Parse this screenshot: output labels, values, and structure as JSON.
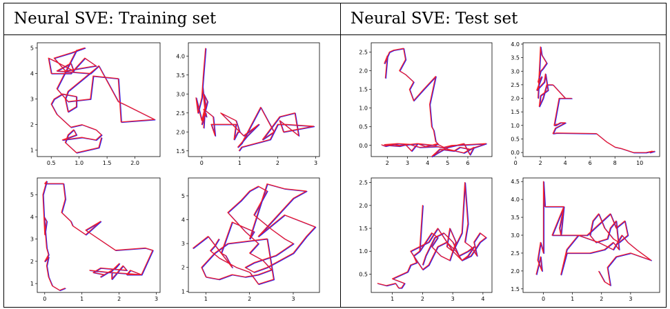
{
  "headers": {
    "left": "Neural SVE: Training set",
    "right": "Neural SVE: Test set"
  },
  "colors": {
    "truth": "#1a1aff",
    "prediction": "#ff1a1a",
    "blend": "#8e1a8e"
  },
  "chart_data": [
    {
      "type": "line",
      "xlim": [
        0.25,
        2.45
      ],
      "ylim": [
        0.75,
        5.2
      ],
      "xticks": [
        "0.5",
        "1.0",
        "1.5",
        "2.0"
      ],
      "yticks": [
        "1",
        "2",
        "3",
        "4",
        "5"
      ],
      "series": [
        {
          "x": [
            1.4,
            1.35,
            0.95,
            0.75,
            0.8,
            0.9,
            0.95,
            0.7,
            1.05,
            1.3,
            1.4,
            1.3,
            1.05,
            0.85,
            0.6,
            0.5,
            0.55,
            0.7,
            0.95,
            0.95,
            0.8,
            0.75,
            0.8,
            1.3,
            1.35,
            1.7,
            1.8,
            2.35,
            1.75,
            1.7,
            1.25,
            1.2,
            0.8,
            0.6,
            0.95,
            1.1,
            0.85,
            0.55,
            0.75,
            1.3,
            1.1,
            0.85,
            0.5,
            0.45,
            0.55,
            0.9,
            0.85,
            0.6,
            1.2,
            1.3
          ],
          "y": [
            1.5,
            1.1,
            0.9,
            1.3,
            1.6,
            1.8,
            1.6,
            1.4,
            1.5,
            1.4,
            1.6,
            1.8,
            2.0,
            1.9,
            2.4,
            2.8,
            3.0,
            3.2,
            3.1,
            2.7,
            2.5,
            3.0,
            3.3,
            4.2,
            4.3,
            2.9,
            2.8,
            2.2,
            2.1,
            3.8,
            3.9,
            3.0,
            2.9,
            3.4,
            4.9,
            5.0,
            4.8,
            4.6,
            4.1,
            4.3,
            4.6,
            4.0,
            4.0,
            4.6,
            4.5,
            4.1,
            4.4,
            4.1,
            4.0,
            4.2
          ]
        }
      ]
    },
    {
      "type": "line",
      "xlim": [
        -0.35,
        3.1
      ],
      "ylim": [
        1.35,
        4.35
      ],
      "xticks": [
        "0",
        "1",
        "2",
        "3"
      ],
      "yticks": [
        "1.5",
        "2.0",
        "2.5",
        "3.0",
        "3.5",
        "4.0"
      ],
      "series": [
        {
          "x": [
            0.05,
            0.08,
            0.02,
            0.1,
            0.05,
            0.0,
            -0.1,
            -0.15,
            0.0,
            0.1,
            0.05,
            0.15,
            0.05,
            0.0,
            0.1,
            0.12,
            0.05,
            0.3,
            0.35,
            0.25,
            0.9,
            0.85,
            0.95,
            1.0,
            0.9,
            0.7,
            0.5,
            1.1,
            1.5,
            1.2,
            0.95,
            1.05,
            1.55,
            1.9,
            1.6,
            2.05,
            2.45,
            2.55,
            2.05,
            2.15,
            2.95,
            2.2,
            2.0,
            1.8,
            1.05,
            0.98
          ],
          "y": [
            2.1,
            2.6,
            3.2,
            4.2,
            3.6,
            2.9,
            2.5,
            2.9,
            2.3,
            2.7,
            3.0,
            2.8,
            2.4,
            2.2,
            2.5,
            2.4,
            2.6,
            2.4,
            1.9,
            2.2,
            2.2,
            1.8,
            2.0,
            2.0,
            2.3,
            2.4,
            2.5,
            1.9,
            2.2,
            1.9,
            1.6,
            1.7,
            2.65,
            2.0,
            1.8,
            2.4,
            2.5,
            1.9,
            2.3,
            2.0,
            2.15,
            2.2,
            2.2,
            1.8,
            1.6,
            1.5
          ]
        }
      ]
    },
    {
      "type": "line",
      "xlim": [
        1.2,
        7.2
      ],
      "ylim": [
        -0.3,
        2.75
      ],
      "xticks": [
        "2",
        "3",
        "4",
        "5",
        "6"
      ],
      "yticks": [
        "0.0",
        "0.5",
        "1.0",
        "1.5",
        "2.0",
        "2.5"
      ],
      "series": [
        {
          "x": [
            1.9,
            2.0,
            1.85,
            2.1,
            2.3,
            2.8,
            2.9,
            2.6,
            2.9,
            3.3,
            3.1,
            3.3,
            3.8,
            4.4,
            4.1,
            4.2,
            4.3,
            4.4,
            4.5,
            4.3,
            4.4,
            3.5,
            3.2,
            2.9,
            2.6,
            2.1,
            1.85,
            2.5,
            3.1,
            3.6,
            4.5,
            5.0,
            5.8,
            6.3,
            6.1,
            5.8,
            5.0,
            4.5,
            4.2,
            4.6,
            5.3,
            5.6,
            6.1,
            6.9,
            6.0,
            5.2,
            4.8,
            4.5,
            4.1,
            3.9,
            3.5,
            3.0,
            2.6,
            2.3,
            1.9,
            1.7
          ],
          "y": [
            1.8,
            2.4,
            2.2,
            2.5,
            2.55,
            2.6,
            2.3,
            2.0,
            1.9,
            1.7,
            1.5,
            1.2,
            1.5,
            1.85,
            1.1,
            0.5,
            0.4,
            0.1,
            0.05,
            0.02,
            0.0,
            0.05,
            -0.15,
            0.02,
            -0.02,
            0.0,
            0.02,
            0.05,
            0.03,
            -0.05,
            -0.03,
            -0.1,
            -0.2,
            -0.05,
            -0.25,
            0.05,
            -0.05,
            -0.2,
            -0.3,
            -0.1,
            -0.15,
            -0.05,
            -0.1,
            0.05,
            0.02,
            0.0,
            -0.05,
            0.03,
            0.0,
            -0.03,
            0.05,
            0.02,
            0.0,
            0.03,
            -0.02,
            0.02
          ]
        }
      ]
    },
    {
      "type": "line",
      "xlim": [
        0.6,
        11.6
      ],
      "ylim": [
        -0.15,
        4.05
      ],
      "xticks": [
        "0",
        "2",
        "4",
        "6",
        "8",
        "10"
      ],
      "yticks": [
        "0.0",
        "0.5",
        "1.0",
        "1.5",
        "2.0",
        "2.5",
        "3.0",
        "3.5",
        "4.0"
      ],
      "series": [
        {
          "x": [
            1.8,
            2.0,
            2.1,
            2.5,
            2.2,
            2.0,
            1.8,
            2.1,
            1.7,
            2.3,
            2.4,
            2.6,
            2.0,
            1.9,
            2.2,
            2.5,
            3.0,
            4.0,
            4.5,
            3.5,
            3.1,
            3.3,
            3.2,
            3.6,
            4.0,
            3.2,
            3.0,
            3.3,
            6.5,
            7.3,
            8.0,
            8.5,
            9.5,
            10.5,
            11.0,
            10.8,
            11.2
          ],
          "y": [
            2.0,
            3.9,
            3.6,
            3.3,
            3.1,
            3.0,
            2.6,
            2.8,
            2.3,
            2.6,
            2.9,
            2.3,
            2.1,
            1.7,
            2.0,
            2.5,
            2.5,
            2.0,
            2.0,
            2.0,
            1.0,
            1.05,
            1.0,
            1.1,
            1.1,
            0.9,
            0.7,
            0.72,
            0.7,
            0.4,
            0.2,
            0.15,
            0.0,
            0.0,
            0.05,
            0.0,
            0.05
          ]
        }
      ]
    },
    {
      "type": "line",
      "xlim": [
        -0.2,
        3.1
      ],
      "ylim": [
        0.6,
        5.75
      ],
      "xticks": [
        "0",
        "1",
        "2",
        "3"
      ],
      "yticks": [
        "1",
        "2",
        "3",
        "4",
        "5"
      ],
      "series": [
        {
          "x": [
            0.55,
            0.4,
            0.2,
            0.1,
            0.05,
            0.1,
            0.0,
            0.1,
            0.05,
            -0.02,
            0.05,
            0.0,
            -0.05,
            0.05,
            0.0,
            0.5,
            0.55,
            0.5,
            0.45,
            0.7,
            0.75,
            1.1,
            1.5,
            1.1,
            1.9,
            2.7,
            2.9,
            2.6,
            2.2,
            2.3,
            2.6,
            1.8,
            1.8,
            2.1,
            2.2,
            1.5,
            1.3,
            1.6,
            1.5,
            1.9,
            2.0,
            1.75,
            1.2
          ],
          "y": [
            0.8,
            0.7,
            0.9,
            1.3,
            1.8,
            2.2,
            2.0,
            2.3,
            2.6,
            4.0,
            3.8,
            3.2,
            5.0,
            5.6,
            5.5,
            5.5,
            4.8,
            4.5,
            4.2,
            3.8,
            3.6,
            3.2,
            3.8,
            3.4,
            2.5,
            2.6,
            2.5,
            1.4,
            1.4,
            1.6,
            1.4,
            1.5,
            1.2,
            1.8,
            1.6,
            1.7,
            1.5,
            1.4,
            1.3,
            1.7,
            1.9,
            1.5,
            1.6
          ]
        }
      ]
    },
    {
      "type": "line",
      "xlim": [
        0.6,
        3.6
      ],
      "ylim": [
        0.95,
        5.75
      ],
      "xticks": [
        "1",
        "2",
        "3"
      ],
      "yticks": [
        "1",
        "2",
        "3",
        "4",
        "5"
      ],
      "series": [
        {
          "x": [
            0.7,
            1.05,
            1.6,
            1.45,
            1.35,
            1.6,
            2.1,
            2.0,
            2.4,
            2.8,
            3.3,
            3.0,
            2.5,
            2.2,
            2.8,
            3.5,
            3.3,
            3.0,
            2.6,
            2.4,
            2.1,
            1.9,
            2.1,
            2.6,
            3.0,
            2.8,
            2.5,
            2.1,
            2.4,
            2.2,
            2.0,
            1.8,
            1.5,
            1.7,
            1.9,
            2.2,
            2.0,
            2.3,
            2.5,
            2.2,
            1.9,
            1.6,
            1.3,
            1.0,
            0.9,
            1.2,
            1.5,
            2.4,
            2.55,
            2.2,
            2.0,
            1.7,
            1.3,
            1.1,
            1.2,
            1.3
          ],
          "y": [
            2.8,
            3.3,
            2.0,
            2.5,
            2.6,
            3.9,
            3.5,
            3.2,
            5.5,
            5.3,
            5.2,
            4.9,
            3.9,
            3.3,
            4.2,
            3.7,
            3.3,
            2.6,
            2.2,
            2.0,
            1.8,
            2.0,
            2.2,
            2.5,
            3.0,
            3.2,
            3.6,
            4.2,
            5.2,
            5.4,
            5.2,
            4.8,
            4.3,
            3.9,
            3.5,
            3.0,
            2.6,
            2.3,
            1.9,
            1.7,
            1.6,
            1.7,
            1.5,
            1.6,
            2.0,
            2.6,
            3.0,
            3.2,
            1.5,
            1.3,
            1.8,
            2.0,
            2.4,
            2.7,
            2.9,
            3.2
          ]
        }
      ]
    },
    {
      "type": "line",
      "xlim": [
        0.3,
        4.3
      ],
      "ylim": [
        0.1,
        2.6
      ],
      "xticks": [
        "1",
        "2",
        "3",
        "4"
      ],
      "yticks": [
        "0.5",
        "1.0",
        "1.5",
        "2.0",
        "2.5"
      ],
      "series": [
        {
          "x": [
            0.5,
            0.8,
            1.1,
            1.2,
            1.3,
            1.4,
            1.2,
            1.0,
            1.5,
            1.6,
            1.8,
            1.7,
            1.9,
            2.0,
            1.9,
            2.1,
            2.3,
            2.5,
            2.3,
            2.6,
            2.9,
            3.1,
            2.9,
            2.8,
            3.0,
            3.3,
            3.4,
            3.5,
            3.4,
            3.6,
            3.8,
            3.7,
            3.9,
            4.1,
            3.9,
            3.6,
            3.3,
            3.0,
            2.8,
            2.5,
            2.2,
            2.0,
            1.8,
            1.6,
            1.9,
            2.2,
            2.5,
            2.8,
            3.1,
            3.3,
            3.5,
            3.7,
            3.5,
            3.2,
            3.0,
            2.7,
            2.4,
            2.1,
            2.0
          ],
          "y": [
            0.3,
            0.25,
            0.3,
            0.2,
            0.2,
            0.3,
            0.35,
            0.4,
            0.55,
            0.7,
            0.75,
            0.9,
            1.0,
            2.0,
            1.0,
            1.2,
            1.4,
            1.3,
            1.1,
            0.9,
            0.8,
            1.2,
            1.5,
            1.1,
            1.0,
            1.4,
            2.5,
            1.6,
            1.2,
            1.1,
            0.9,
            1.2,
            1.4,
            1.3,
            1.2,
            0.9,
            0.8,
            1.0,
            1.2,
            1.1,
            0.7,
            0.6,
            0.8,
            1.0,
            1.1,
            1.2,
            1.5,
            1.2,
            1.0,
            0.8,
            0.9,
            1.1,
            1.0,
            0.9,
            1.2,
            1.4,
            1.3,
            0.9,
            0.7
          ]
        }
      ]
    },
    {
      "type": "line",
      "xlim": [
        -0.7,
        4.0
      ],
      "ylim": [
        1.4,
        4.6
      ],
      "xticks": [
        "0",
        "1",
        "2",
        "3"
      ],
      "yticks": [
        "1.5",
        "2.0",
        "2.5",
        "3.0",
        "3.5",
        "4.0",
        "4.5"
      ],
      "series": [
        {
          "x": [
            -0.25,
            -0.1,
            -0.05,
            -0.2,
            -0.1,
            0.0,
            0.0,
            0.05,
            0.1,
            0.7,
            0.6,
            0.55,
            0.7,
            0.3,
            1.5,
            2.3,
            2.5,
            2.8,
            2.9,
            2.6,
            2.4,
            2.1,
            1.9,
            1.7,
            1.6,
            1.8,
            2.2,
            2.3,
            2.5,
            2.6,
            2.4,
            2.1,
            1.6,
            0.8,
            0.6,
            0.8,
            1.2,
            1.9,
            2.4,
            2.7,
            2.9,
            3.2,
            3.7,
            3.0,
            2.5,
            2.2,
            2.3,
            2.1,
            1.9
          ],
          "y": [
            1.9,
            2.4,
            2.0,
            2.3,
            2.8,
            2.5,
            4.5,
            3.8,
            3.8,
            3.8,
            3.0,
            3.2,
            3.8,
            3.0,
            3.0,
            3.6,
            3.2,
            3.4,
            3.0,
            2.8,
            2.9,
            3.2,
            3.6,
            3.4,
            3.0,
            2.8,
            2.9,
            3.2,
            3.4,
            2.6,
            2.8,
            2.6,
            2.5,
            2.5,
            1.9,
            2.6,
            3.0,
            2.8,
            2.6,
            3.0,
            2.8,
            2.6,
            2.3,
            2.5,
            2.4,
            2.1,
            1.6,
            1.7,
            2.0
          ]
        }
      ]
    }
  ]
}
